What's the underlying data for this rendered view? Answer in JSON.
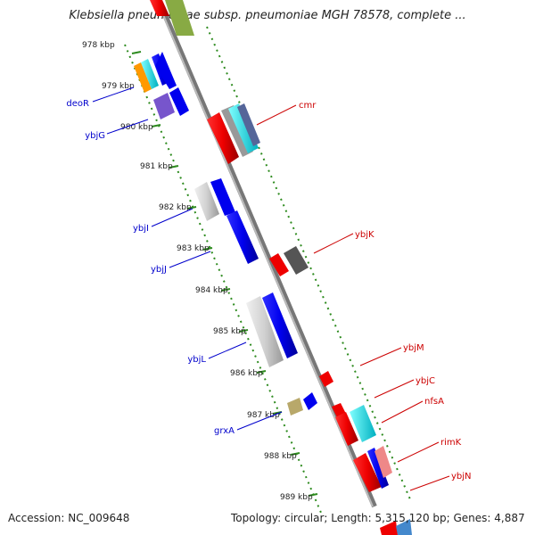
{
  "title": "Klebsiella pneumoniae subsp. pneumoniae MGH 78578, complete ...",
  "footer": {
    "accession": "Accession: NC_009648",
    "stats": "Topology: circular; Length: 5,315,120 bp; Genes: 4,887"
  },
  "scale": {
    "tick_labels": [
      "978 kbp",
      "979 kbp",
      "980 kbp",
      "981 kbp",
      "982 kbp",
      "983 kbp",
      "984 kbp",
      "985 kbp",
      "986 kbp",
      "987 kbp",
      "988 kbp",
      "989 kbp"
    ]
  },
  "genes_left": [
    "deoR",
    "ybjG",
    "ybjI",
    "ybjJ",
    "ybjL",
    "grxA"
  ],
  "genes_right": [
    "cmr",
    "ybjK",
    "ybjM",
    "ybjC",
    "nfsA",
    "rimK",
    "ybjN"
  ],
  "colors": {
    "label_left": "#0000cc",
    "label_right": "#cc0000",
    "ruler_green": "#2e8b1f",
    "backbone": "#888888"
  }
}
